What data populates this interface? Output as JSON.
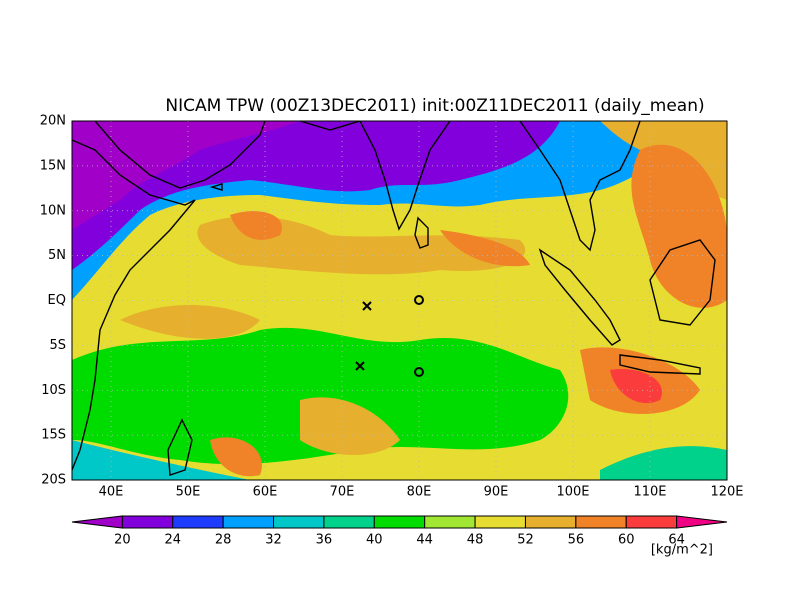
{
  "title": "NICAM TPW (00Z13DEC2011) init:00Z11DEC2011 (daily_mean)",
  "lat_labels": [
    "20N",
    "15N",
    "10N",
    "5N",
    "EQ",
    "5S",
    "10S",
    "15S",
    "20S"
  ],
  "lon_labels": [
    "40E",
    "50E",
    "60E",
    "70E",
    "80E",
    "90E",
    "100E",
    "110E",
    "120E"
  ],
  "colorbar": {
    "levels": [
      20,
      24,
      28,
      32,
      36,
      40,
      44,
      48,
      52,
      56,
      60,
      64
    ],
    "colors": [
      "#a000c8",
      "#8200dc",
      "#1e3cff",
      "#00a0ff",
      "#00c8c8",
      "#00d28c",
      "#00dc00",
      "#a0e632",
      "#e6dc32",
      "#e6af2d",
      "#f08228",
      "#fa3c3c",
      "#f00082"
    ],
    "unit": "[kg/m^2]"
  }
}
